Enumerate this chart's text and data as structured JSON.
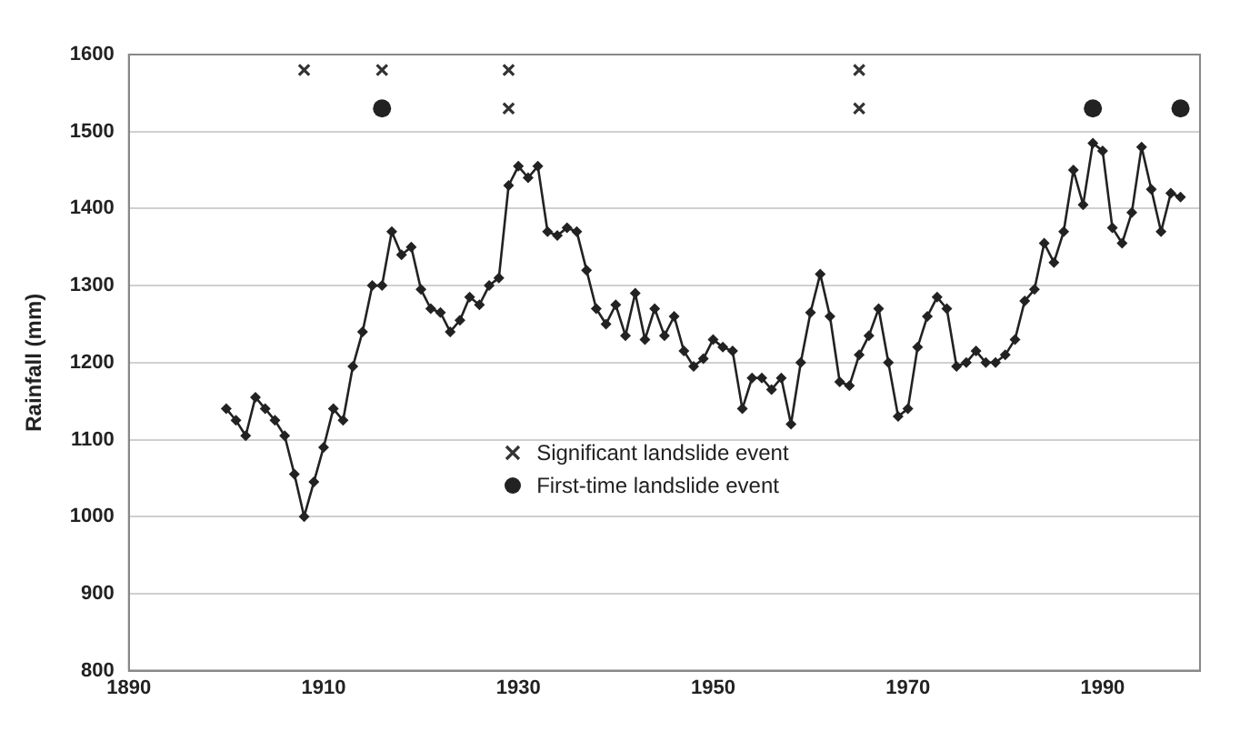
{
  "chart_data": {
    "type": "line",
    "ylabel": "Rainfall (mm)",
    "xlim": [
      1890,
      2000
    ],
    "xticks": [
      1890,
      1910,
      1930,
      1950,
      1970,
      1990
    ],
    "ylim": [
      800,
      1600
    ],
    "yticks": [
      800,
      900,
      1000,
      1100,
      1200,
      1300,
      1400,
      1500,
      1600
    ],
    "grid": "y",
    "legend": "bottom",
    "marker": "diamond",
    "line_style": "solid",
    "series": [
      {
        "color": "#222222",
        "x": [
          1900,
          1901,
          1902,
          1903,
          1904,
          1905,
          1906,
          1907,
          1908,
          1909,
          1910,
          1911,
          1912,
          1913,
          1914,
          1915,
          1916,
          1917,
          1918,
          1919,
          1920,
          1921,
          1922,
          1923,
          1924,
          1925,
          1926,
          1927,
          1928,
          1929,
          1930,
          1931,
          1932,
          1933,
          1934,
          1935,
          1936,
          1937,
          1938,
          1939,
          1940,
          1941,
          1942,
          1943,
          1944,
          1945,
          1946,
          1947,
          1948,
          1949,
          1950,
          1951,
          1952,
          1953,
          1954,
          1955,
          1956,
          1957,
          1958,
          1959,
          1960,
          1961,
          1962,
          1963,
          1964,
          1965,
          1966,
          1967,
          1968,
          1969,
          1970,
          1971,
          1972,
          1973,
          1974,
          1975,
          1976,
          1977,
          1978,
          1979,
          1980,
          1981,
          1982,
          1983,
          1984,
          1985,
          1986,
          1987,
          1988,
          1989,
          1990,
          1991,
          1992,
          1993,
          1994,
          1995,
          1996,
          1997,
          1998
        ],
        "values": [
          1140,
          1125,
          1105,
          1155,
          1140,
          1125,
          1105,
          1055,
          1000,
          1045,
          1090,
          1140,
          1125,
          1195,
          1240,
          1300,
          1300,
          1370,
          1340,
          1350,
          1295,
          1270,
          1265,
          1240,
          1255,
          1285,
          1275,
          1300,
          1310,
          1430,
          1455,
          1440,
          1455,
          1370,
          1365,
          1375,
          1370,
          1320,
          1270,
          1250,
          1275,
          1235,
          1290,
          1230,
          1270,
          1235,
          1260,
          1215,
          1195,
          1205,
          1230,
          1220,
          1215,
          1140,
          1180,
          1180,
          1165,
          1180,
          1120,
          1200,
          1265,
          1315,
          1260,
          1175,
          1170,
          1210,
          1235,
          1270,
          1200,
          1130,
          1140,
          1220,
          1260,
          1285,
          1270,
          1195,
          1200,
          1215,
          1200,
          1200,
          1210,
          1230,
          1280,
          1295,
          1355,
          1330,
          1370,
          1450,
          1405,
          1485,
          1475,
          1375,
          1355,
          1395,
          1480,
          1425,
          1370,
          1420,
          1415
        ]
      },
      {
        "type": "scatter",
        "name": "Significant landslide event",
        "color": "#333333",
        "marker": "cross",
        "x": [
          1908,
          1916,
          1929,
          1929,
          1965,
          1965
        ],
        "values": [
          1580,
          1580,
          1580,
          1530,
          1580,
          1530
        ]
      },
      {
        "type": "scatter",
        "name": "First-time landslide event",
        "color": "#222222",
        "marker": "circle",
        "x": [
          1916,
          1989,
          1998
        ],
        "values": [
          1530,
          1530,
          1530
        ]
      }
    ]
  }
}
